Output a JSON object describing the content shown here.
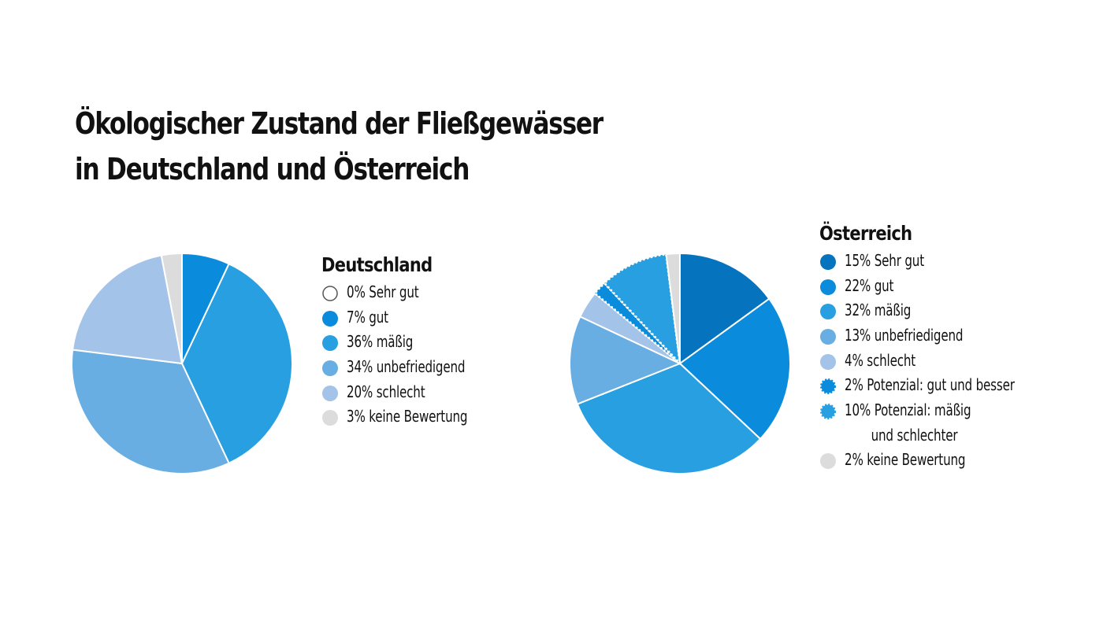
{
  "title": {
    "line1": "Ökologischer Zustand der Fließgewässer",
    "line2": "in Deutschland und Österreich"
  },
  "chart_data": [
    {
      "type": "pie",
      "title": "Deutschland",
      "slices": [
        {
          "label": "Sehr gut",
          "text": "0% Sehr gut",
          "value": 0,
          "color": "#ffffff",
          "border": "#555555",
          "style": "outline"
        },
        {
          "label": "gut",
          "text": "7% gut",
          "value": 7,
          "color": "#0a8bdc",
          "style": "solid"
        },
        {
          "label": "mäßig",
          "text": "36% mäßig",
          "value": 36,
          "color": "#279fe1",
          "style": "solid"
        },
        {
          "label": "unbefriedigend",
          "text": "34% unbefriedigend",
          "value": 34,
          "color": "#68aee2",
          "style": "solid"
        },
        {
          "label": "schlecht",
          "text": "20% schlecht",
          "value": 20,
          "color": "#a3c3e8",
          "style": "solid"
        },
        {
          "label": "keine Bewertung",
          "text": "3% keine Bewertung",
          "value": 3,
          "color": "#dcdcdc",
          "style": "solid"
        }
      ]
    },
    {
      "type": "pie",
      "title": "Österreich",
      "slices": [
        {
          "label": "Sehr gut",
          "text": "15% Sehr gut",
          "value": 15,
          "color": "#0673bf",
          "style": "solid"
        },
        {
          "label": "gut",
          "text": "22% gut",
          "value": 22,
          "color": "#0a8bdc",
          "style": "solid"
        },
        {
          "label": "mäßig",
          "text": "32% mäßig",
          "value": 32,
          "color": "#279fe1",
          "style": "solid"
        },
        {
          "label": "unbefriedigend",
          "text": "13% unbefriedigend",
          "value": 13,
          "color": "#68aee2",
          "style": "solid"
        },
        {
          "label": "schlecht",
          "text": "4% schlecht",
          "value": 4,
          "color": "#a3c3e8",
          "style": "solid"
        },
        {
          "label": "Potenzial: gut und besser",
          "text": "2% Potenzial: gut und besser",
          "value": 2,
          "color": "#0a8bdc",
          "style": "dotted"
        },
        {
          "label": "Potenzial: mäßig und schlechter",
          "text": "10% Potenzial: mäßig",
          "text2": "und schlechter",
          "value": 10,
          "color": "#279fe1",
          "style": "dotted"
        },
        {
          "label": "keine Bewertung",
          "text": "2% keine Bewertung",
          "value": 2,
          "color": "#dcdcdc",
          "style": "solid"
        }
      ]
    }
  ]
}
